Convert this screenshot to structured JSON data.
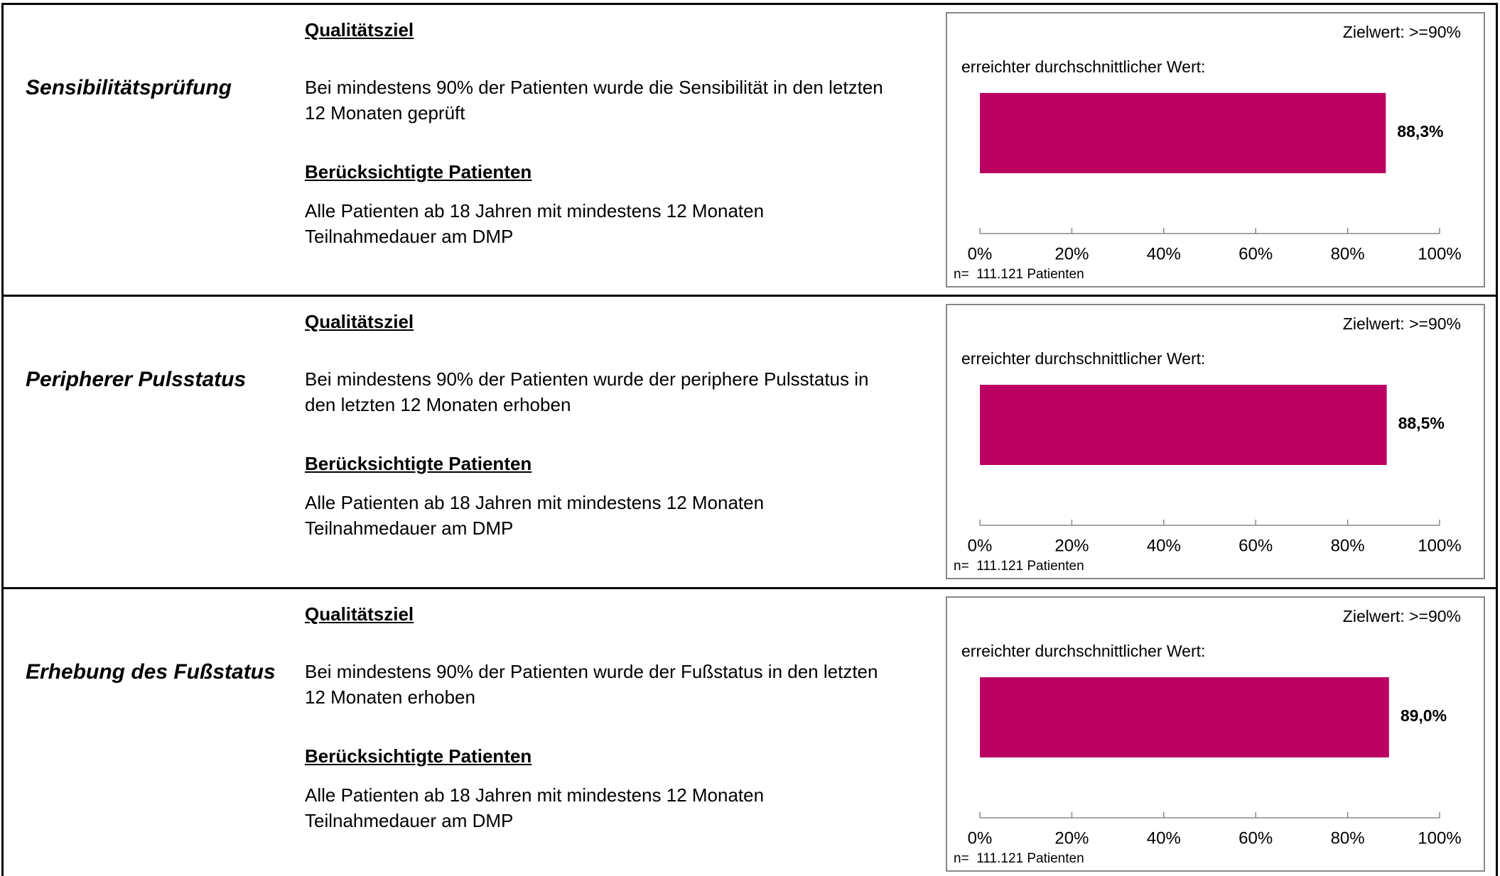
{
  "rows": [
    {
      "label": "Sensibilitätsprüfung",
      "goal_heading": "Qualitätsziel",
      "goal_lines": [
        "Bei mindestens 90% der Patienten wurde die Sensibilität in den letzten",
        "12 Monaten geprüft"
      ],
      "patients_heading": "Berücksichtigte Patienten",
      "patients_lines": [
        "Alle Patienten ab 18 Jahren mit mindestens 12 Monaten",
        "Teilnahmedauer am DMP"
      ]
    },
    {
      "label": "Peripherer Pulsstatus",
      "goal_heading": "Qualitätsziel",
      "goal_lines": [
        "Bei mindestens 90% der Patienten wurde der periphere Pulsstatus in",
        "den letzten 12 Monaten erhoben"
      ],
      "patients_heading": "Berücksichtigte Patienten",
      "patients_lines": [
        "Alle Patienten ab 18 Jahren mit mindestens 12 Monaten",
        "Teilnahmedauer am DMP"
      ]
    },
    {
      "label": "Erhebung des Fußstatus",
      "goal_heading": "Qualitätsziel",
      "goal_lines": [
        "Bei mindestens 90% der Patienten wurde der Fußstatus in den letzten",
        "12 Monaten erhoben"
      ],
      "patients_heading": "Berücksichtigte Patienten",
      "patients_lines": [
        "Alle Patienten ab 18 Jahren mit mindestens 12 Monaten",
        "Teilnahmedauer am DMP"
      ]
    }
  ],
  "chart_data": [
    {
      "type": "bar",
      "title": "Zielwert: >=90%",
      "subtitle": "erreichter durchschnittlicher Wert:",
      "categories": [
        null
      ],
      "values": [
        88.3
      ],
      "value_labels": [
        "88,3%"
      ],
      "color": "#bc0062",
      "xlim": [
        0,
        100
      ],
      "xticks": [
        {
          "value": 0,
          "label": "0%"
        },
        {
          "value": 20,
          "label": "20%"
        },
        {
          "value": 40,
          "label": "40%"
        },
        {
          "value": 60,
          "label": "60%"
        },
        {
          "value": 80,
          "label": "80%"
        },
        {
          "value": 100,
          "label": "100%"
        }
      ],
      "note": "n=  111.121 Patienten"
    },
    {
      "type": "bar",
      "title": "Zielwert: >=90%",
      "subtitle": "erreichter durchschnittlicher Wert:",
      "categories": [
        null
      ],
      "values": [
        88.5
      ],
      "value_labels": [
        "88,5%"
      ],
      "color": "#bc0062",
      "xlim": [
        0,
        100
      ],
      "xticks": [
        {
          "value": 0,
          "label": "0%"
        },
        {
          "value": 20,
          "label": "20%"
        },
        {
          "value": 40,
          "label": "40%"
        },
        {
          "value": 60,
          "label": "60%"
        },
        {
          "value": 80,
          "label": "80%"
        },
        {
          "value": 100,
          "label": "100%"
        }
      ],
      "note": "n=  111.121 Patienten"
    },
    {
      "type": "bar",
      "title": "Zielwert: >=90%",
      "subtitle": "erreichter durchschnittlicher Wert:",
      "categories": [
        null
      ],
      "values": [
        89.0
      ],
      "value_labels": [
        "89,0%"
      ],
      "color": "#bc0062",
      "xlim": [
        0,
        100
      ],
      "xticks": [
        {
          "value": 0,
          "label": "0%"
        },
        {
          "value": 20,
          "label": "20%"
        },
        {
          "value": 40,
          "label": "40%"
        },
        {
          "value": 60,
          "label": "60%"
        },
        {
          "value": 80,
          "label": "80%"
        },
        {
          "value": 100,
          "label": "100%"
        }
      ],
      "note": "n=  111.121 Patienten"
    }
  ]
}
